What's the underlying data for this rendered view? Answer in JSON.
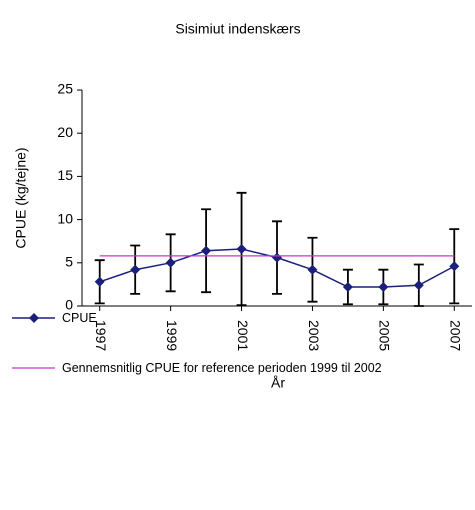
{
  "chart_data": {
    "type": "line",
    "title": "Sisimiut indenskærs",
    "x_label": "År",
    "y_label": "CPUE (kg/tejne)",
    "x": [
      1997,
      1998,
      1999,
      2000,
      2001,
      2002,
      2003,
      2004,
      2005,
      2006,
      2007
    ],
    "xlim": [
      1996.5,
      2007.5
    ],
    "xticks": [
      1997,
      1999,
      2001,
      2003,
      2005,
      2007
    ],
    "ylim": [
      0,
      25
    ],
    "yticks": [
      0,
      5,
      10,
      15,
      20,
      25
    ],
    "grid": false,
    "series": [
      {
        "name": "CPUE",
        "color": "#1a1f7a",
        "marker": "diamond",
        "values": [
          2.8,
          4.2,
          5.0,
          6.4,
          6.6,
          5.6,
          4.2,
          2.2,
          2.2,
          2.4,
          4.6
        ],
        "errors": [
          2.5,
          2.8,
          3.3,
          4.8,
          6.5,
          4.2,
          3.7,
          2.0,
          2.0,
          2.4,
          4.3
        ]
      },
      {
        "name": "Gennemsnitlig CPUE for reference perioden 1999 til 2002",
        "color": "#cc33cc",
        "values": [
          5.8,
          5.8,
          5.8,
          5.8,
          5.8,
          5.8,
          5.8,
          5.8,
          5.8,
          5.8,
          5.8
        ]
      }
    ]
  }
}
